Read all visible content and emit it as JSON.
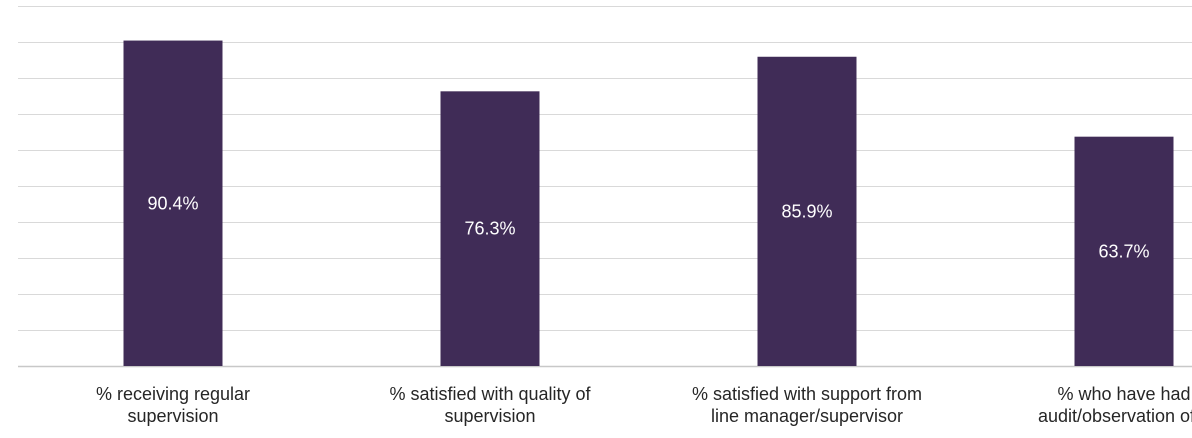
{
  "chart_data": {
    "type": "bar",
    "categories": [
      [
        "% receiving regular",
        "supervision"
      ],
      [
        "% satisfied with quality of",
        "supervision"
      ],
      [
        "% satisfied with support from",
        "line manager/supervisor"
      ],
      [
        "% who have had",
        "audit/observation of p"
      ]
    ],
    "values": [
      90.4,
      76.3,
      85.9,
      63.7
    ],
    "data_labels": [
      "90.4%",
      "76.3%",
      "85.9%",
      "63.7%"
    ],
    "ylim": [
      0,
      100
    ],
    "grid": true,
    "bar_color": "#402c57",
    "grid_color": "#d9d9d9"
  }
}
